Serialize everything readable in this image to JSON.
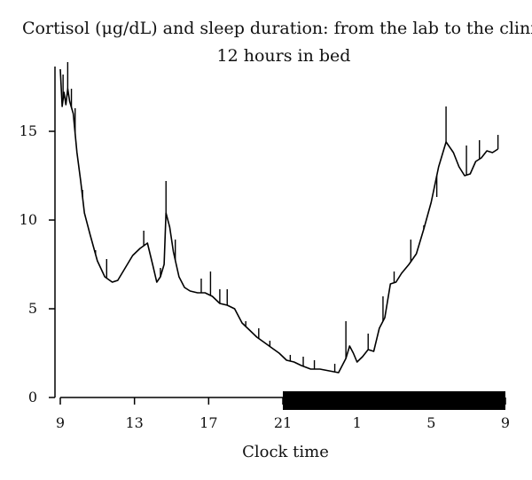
{
  "chart_data": {
    "type": "line",
    "title": "Cortisol (μg/dL) and sleep duration: from the lab to the clinic",
    "subtitle": "12 hours in bed",
    "xlabel": "Clock time",
    "ylabel": "",
    "x_tick_labels": [
      "9",
      "13",
      "17",
      "21",
      "1",
      "5",
      "9"
    ],
    "y_tick_labels": [
      "0",
      "5",
      "10",
      "15"
    ],
    "xlim": [
      9,
      33
    ],
    "ylim": [
      0,
      19
    ],
    "grid": false,
    "series": [
      {
        "name": "",
        "x": [
          9.0,
          9.1,
          9.2,
          9.3,
          9.4,
          9.5,
          9.7,
          9.9,
          10.1,
          10.3,
          10.6,
          11.0,
          11.4,
          11.8,
          12.1,
          12.5,
          12.9,
          13.3,
          13.7,
          14.0,
          14.2,
          14.4,
          14.6,
          14.7,
          14.9,
          15.1,
          15.4,
          15.7,
          16.0,
          16.4,
          16.8,
          17.2,
          17.6,
          18.0,
          18.4,
          18.8,
          19.2,
          19.6,
          20.0,
          20.4,
          20.8,
          21.2,
          21.6,
          22.0,
          22.5,
          23.0,
          23.5,
          24.0,
          24.4,
          24.6,
          24.8,
          25.0,
          25.3,
          25.6,
          25.9,
          26.2,
          26.5,
          26.8,
          27.1,
          27.4,
          27.8,
          28.2,
          28.6,
          29.0,
          29.4,
          29.8,
          30.2,
          30.5,
          30.8,
          31.1,
          31.4,
          31.7,
          32.0,
          32.3,
          32.6
        ],
        "y": [
          18.5,
          16.4,
          17.2,
          16.5,
          17.4,
          16.7,
          16.0,
          13.8,
          12.2,
          10.4,
          9.2,
          7.7,
          6.8,
          6.5,
          6.6,
          7.3,
          8.0,
          8.4,
          8.7,
          7.4,
          6.5,
          6.8,
          7.5,
          10.4,
          9.6,
          8.2,
          6.8,
          6.2,
          6.0,
          5.9,
          5.9,
          5.7,
          5.3,
          5.2,
          5.0,
          4.2,
          3.8,
          3.4,
          3.1,
          2.8,
          2.5,
          2.1,
          2.0,
          1.8,
          1.6,
          1.6,
          1.5,
          1.4,
          2.2,
          2.9,
          2.5,
          2.0,
          2.3,
          2.7,
          2.6,
          3.9,
          4.5,
          6.4,
          6.5,
          7.0,
          7.5,
          8.1,
          9.5,
          11.0,
          13.0,
          14.4,
          13.8,
          13.0,
          12.5,
          12.6,
          13.3,
          13.5,
          13.9,
          13.8,
          14.0
        ],
        "color": "#000000"
      }
    ],
    "error_bars": {
      "x": [
        9.15,
        9.4,
        9.6,
        9.8,
        10.2,
        10.9,
        11.5,
        12.4,
        13.5,
        14.4,
        14.7,
        15.2,
        16.6,
        17.1,
        17.6,
        18.0,
        19.0,
        19.7,
        20.3,
        21.4,
        22.1,
        22.7,
        23.8,
        24.4,
        25.6,
        26.4,
        27.0,
        27.9,
        28.6,
        29.3,
        29.8,
        30.9,
        31.6,
        32.6
      ],
      "y_top": [
        18.2,
        18.9,
        17.4,
        16.3,
        11.7,
        8.3,
        7.8,
        7.1,
        9.4,
        7.3,
        12.2,
        8.9,
        6.7,
        7.1,
        6.1,
        6.1,
        4.3,
        3.9,
        3.2,
        2.4,
        2.3,
        2.1,
        1.9,
        4.3,
        3.6,
        5.7,
        7.1,
        8.9,
        9.7,
        11.3,
        16.4,
        14.2,
        14.5,
        14.8
      ],
      "color": "#000000"
    },
    "sleep_period": {
      "start": 21,
      "end": 33,
      "color": "#000000"
    }
  }
}
